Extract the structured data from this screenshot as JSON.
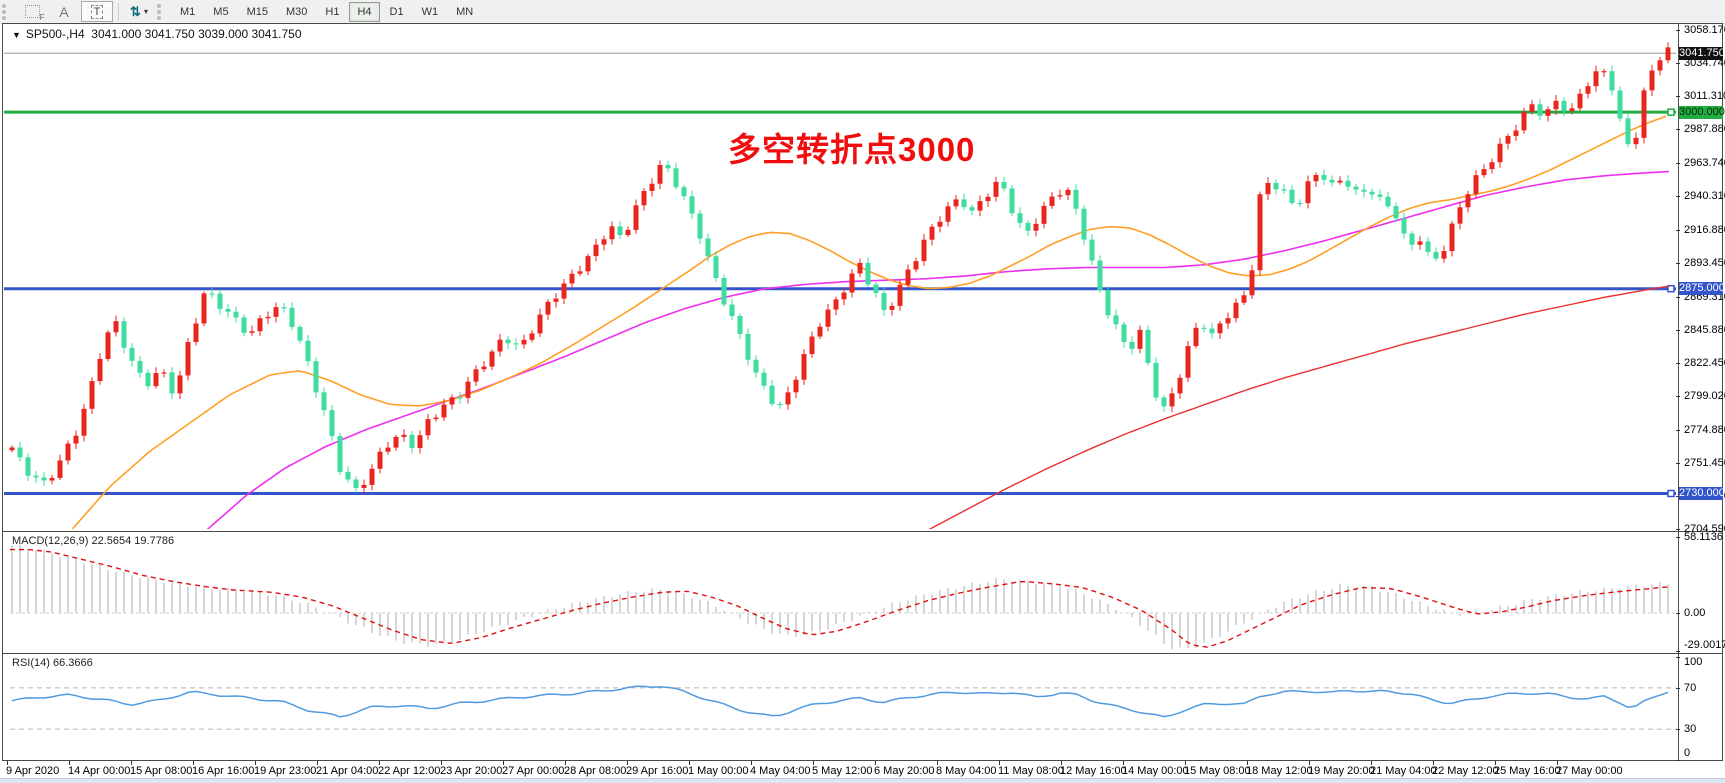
{
  "toolbar": {
    "icon_f": "F",
    "icon_a": "A",
    "icon_t": "T",
    "arrows_glyph": "⇅",
    "caret": "▾",
    "timeframes": [
      "M1",
      "M5",
      "M15",
      "M30",
      "H1",
      "H4",
      "D1",
      "W1",
      "MN"
    ],
    "active_timeframe": "H4"
  },
  "header": {
    "collapse_triangle": "▼",
    "symbol_title": "SP500-,H4",
    "ohlc_text": "3041.000 3041.750 3039.000 3041.750"
  },
  "annotation": {
    "text": "多空转折点3000",
    "color": "#f20d0d"
  },
  "colors": {
    "candle_up": "#e8261f",
    "candle_down": "#3cdd9e",
    "ma_orange": "#ffa024",
    "ma_magenta": "#ee2fee",
    "ma_red": "#e83030",
    "hline_green": "#22ac44",
    "hline_blue": "#3355cc",
    "current_line": "#9d9d9d",
    "macd_bar": "#c6c6c6",
    "macd_signal": "#e01010",
    "rsi_line": "#4f9be0",
    "level_dash": "#b5b5b5"
  },
  "y_axis": {
    "labels": [
      "3058.170",
      "3034.740",
      "3011.310",
      "2987.880",
      "2963.740",
      "2940.310",
      "2916.880",
      "2893.450",
      "2869.310",
      "2845.880",
      "2822.450",
      "2799.020",
      "2774.880",
      "2751.450",
      "2728.020",
      "2704.590"
    ]
  },
  "price_badges": [
    {
      "label": "3041.750",
      "price": 3041.75,
      "bg": "#111111",
      "fg": "#ffffff",
      "handle": false
    },
    {
      "label": "3000.000",
      "price": 3000.0,
      "bg": "#22ac44",
      "fg": "#002a00",
      "handle": true
    },
    {
      "label": "2875.000",
      "price": 2875.0,
      "bg": "#3355cc",
      "fg": "#ffffff",
      "handle": true
    },
    {
      "label": "2730.000",
      "price": 2730.0,
      "bg": "#3355cc",
      "fg": "#ffffff",
      "handle": true
    }
  ],
  "x_axis": {
    "labels": [
      "9 Apr 2020",
      "14 Apr 00:00",
      "15 Apr 08:00",
      "16 Apr 16:00",
      "19 Apr 23:00",
      "21 Apr 04:00",
      "22 Apr 12:00",
      "23 Apr 20:00",
      "27 Apr 00:00",
      "28 Apr 08:00",
      "29 Apr 16:00",
      "1 May 00:00",
      "4 May 04:00",
      "5 May 12:00",
      "6 May 20:00",
      "8 May 04:00",
      "11 May 08:00",
      "12 May 16:00",
      "14 May 00:00",
      "15 May 08:00",
      "18 May 12:00",
      "19 May 20:00",
      "21 May 04:00",
      "22 May 12:00",
      "25 May 16:00",
      "27 May 00:00"
    ]
  },
  "macd": {
    "label": "MACD(12,26,9)",
    "values": "22.5654 19.7786",
    "scale": [
      "58.1136",
      "0.00",
      "-29.0017"
    ]
  },
  "rsi": {
    "label": "RSI(14)",
    "value": "66.3666",
    "scale": [
      "100",
      "70",
      "30",
      "0"
    ],
    "levels": [
      70,
      30
    ]
  },
  "chart_data": {
    "type": "candlestick",
    "symbol": "SP500-",
    "timeframe": "H4",
    "ohlc_current": {
      "open": 3041.0,
      "high": 3041.75,
      "low": 3039.0,
      "close": 3041.75
    },
    "price_lines": [
      3000.0,
      2875.0,
      2730.0
    ],
    "current_price": 3041.75,
    "y_range": [
      2704.59,
      3058.17
    ],
    "close_anchors": [
      [
        8,
        2768
      ],
      [
        25,
        2745
      ],
      [
        45,
        2736
      ],
      [
        60,
        2755
      ],
      [
        75,
        2772
      ],
      [
        90,
        2800
      ],
      [
        105,
        2840
      ],
      [
        115,
        2852
      ],
      [
        130,
        2828
      ],
      [
        145,
        2806
      ],
      [
        160,
        2816
      ],
      [
        175,
        2800
      ],
      [
        190,
        2842
      ],
      [
        205,
        2874
      ],
      [
        220,
        2862
      ],
      [
        235,
        2852
      ],
      [
        250,
        2844
      ],
      [
        265,
        2858
      ],
      [
        280,
        2862
      ],
      [
        295,
        2846
      ],
      [
        310,
        2818
      ],
      [
        325,
        2788
      ],
      [
        340,
        2748
      ],
      [
        355,
        2729
      ],
      [
        370,
        2744
      ],
      [
        385,
        2766
      ],
      [
        400,
        2772
      ],
      [
        415,
        2762
      ],
      [
        430,
        2782
      ],
      [
        445,
        2794
      ],
      [
        460,
        2802
      ],
      [
        475,
        2814
      ],
      [
        490,
        2826
      ],
      [
        505,
        2842
      ],
      [
        520,
        2834
      ],
      [
        535,
        2850
      ],
      [
        550,
        2864
      ],
      [
        565,
        2878
      ],
      [
        580,
        2892
      ],
      [
        595,
        2904
      ],
      [
        610,
        2918
      ],
      [
        622,
        2908
      ],
      [
        635,
        2932
      ],
      [
        650,
        2952
      ],
      [
        662,
        2964
      ],
      [
        672,
        2954
      ],
      [
        685,
        2936
      ],
      [
        700,
        2914
      ],
      [
        712,
        2890
      ],
      [
        725,
        2866
      ],
      [
        740,
        2840
      ],
      [
        755,
        2814
      ],
      [
        770,
        2799
      ],
      [
        782,
        2792
      ],
      [
        795,
        2812
      ],
      [
        808,
        2832
      ],
      [
        820,
        2850
      ],
      [
        835,
        2866
      ],
      [
        848,
        2882
      ],
      [
        860,
        2892
      ],
      [
        872,
        2874
      ],
      [
        885,
        2856
      ],
      [
        898,
        2874
      ],
      [
        910,
        2892
      ],
      [
        922,
        2906
      ],
      [
        935,
        2920
      ],
      [
        948,
        2930
      ],
      [
        960,
        2940
      ],
      [
        972,
        2930
      ],
      [
        985,
        2942
      ],
      [
        1000,
        2950
      ],
      [
        1012,
        2930
      ],
      [
        1025,
        2912
      ],
      [
        1038,
        2928
      ],
      [
        1052,
        2940
      ],
      [
        1065,
        2946
      ],
      [
        1078,
        2926
      ],
      [
        1090,
        2898
      ],
      [
        1102,
        2870
      ],
      [
        1115,
        2850
      ],
      [
        1128,
        2830
      ],
      [
        1140,
        2842
      ],
      [
        1152,
        2810
      ],
      [
        1162,
        2788
      ],
      [
        1175,
        2806
      ],
      [
        1188,
        2832
      ],
      [
        1200,
        2852
      ],
      [
        1212,
        2840
      ],
      [
        1225,
        2856
      ],
      [
        1238,
        2866
      ],
      [
        1250,
        2876
      ],
      [
        1258,
        2936
      ],
      [
        1270,
        2950
      ],
      [
        1282,
        2944
      ],
      [
        1295,
        2934
      ],
      [
        1308,
        2950
      ],
      [
        1320,
        2958
      ],
      [
        1332,
        2946
      ],
      [
        1345,
        2952
      ],
      [
        1358,
        2942
      ],
      [
        1370,
        2948
      ],
      [
        1382,
        2936
      ],
      [
        1395,
        2928
      ],
      [
        1408,
        2902
      ],
      [
        1420,
        2912
      ],
      [
        1432,
        2894
      ],
      [
        1445,
        2906
      ],
      [
        1458,
        2928
      ],
      [
        1470,
        2946
      ],
      [
        1482,
        2958
      ],
      [
        1495,
        2972
      ],
      [
        1508,
        2984
      ],
      [
        1520,
        2992
      ],
      [
        1532,
        3004
      ],
      [
        1545,
        2996
      ],
      [
        1558,
        3012
      ],
      [
        1570,
        2998
      ],
      [
        1582,
        3016
      ],
      [
        1595,
        3024
      ],
      [
        1608,
        3030
      ],
      [
        1620,
        2994
      ],
      [
        1632,
        2972
      ],
      [
        1645,
        3016
      ],
      [
        1655,
        3034
      ],
      [
        1666,
        3041.75
      ]
    ],
    "ma_orange_anchors": [
      [
        70,
        2703
      ],
      [
        110,
        2735
      ],
      [
        150,
        2760
      ],
      [
        190,
        2780
      ],
      [
        230,
        2800
      ],
      [
        270,
        2814
      ],
      [
        300,
        2817
      ],
      [
        330,
        2810
      ],
      [
        360,
        2800
      ],
      [
        390,
        2793
      ],
      [
        420,
        2792
      ],
      [
        450,
        2796
      ],
      [
        480,
        2803
      ],
      [
        510,
        2812
      ],
      [
        540,
        2822
      ],
      [
        570,
        2834
      ],
      [
        600,
        2847
      ],
      [
        630,
        2860
      ],
      [
        660,
        2874
      ],
      [
        690,
        2888
      ],
      [
        710,
        2898
      ],
      [
        730,
        2906
      ],
      [
        750,
        2912
      ],
      [
        770,
        2915
      ],
      [
        790,
        2914
      ],
      [
        810,
        2909
      ],
      [
        830,
        2902
      ],
      [
        850,
        2894
      ],
      [
        870,
        2887
      ],
      [
        890,
        2881
      ],
      [
        910,
        2877
      ],
      [
        930,
        2875
      ],
      [
        950,
        2876
      ],
      [
        970,
        2879
      ],
      [
        990,
        2884
      ],
      [
        1010,
        2891
      ],
      [
        1030,
        2898
      ],
      [
        1050,
        2906
      ],
      [
        1070,
        2912
      ],
      [
        1090,
        2917
      ],
      [
        1110,
        2919
      ],
      [
        1130,
        2918
      ],
      [
        1150,
        2913
      ],
      [
        1170,
        2906
      ],
      [
        1190,
        2898
      ],
      [
        1210,
        2891
      ],
      [
        1230,
        2886
      ],
      [
        1250,
        2884
      ],
      [
        1270,
        2885
      ],
      [
        1290,
        2889
      ],
      [
        1310,
        2895
      ],
      [
        1330,
        2903
      ],
      [
        1350,
        2911
      ],
      [
        1370,
        2919
      ],
      [
        1390,
        2926
      ],
      [
        1410,
        2932
      ],
      [
        1430,
        2936
      ],
      [
        1450,
        2938
      ],
      [
        1470,
        2941
      ],
      [
        1490,
        2944
      ],
      [
        1510,
        2948
      ],
      [
        1530,
        2953
      ],
      [
        1550,
        2959
      ],
      [
        1570,
        2966
      ],
      [
        1590,
        2973
      ],
      [
        1610,
        2980
      ],
      [
        1630,
        2987
      ],
      [
        1650,
        2993
      ],
      [
        1670,
        2998
      ]
    ],
    "ma_magenta_anchors": [
      [
        205,
        2703
      ],
      [
        245,
        2728
      ],
      [
        285,
        2748
      ],
      [
        325,
        2763
      ],
      [
        365,
        2775
      ],
      [
        405,
        2785
      ],
      [
        445,
        2795
      ],
      [
        485,
        2805
      ],
      [
        525,
        2816
      ],
      [
        565,
        2827
      ],
      [
        605,
        2839
      ],
      [
        645,
        2851
      ],
      [
        685,
        2861
      ],
      [
        725,
        2869
      ],
      [
        765,
        2875
      ],
      [
        805,
        2878
      ],
      [
        845,
        2880
      ],
      [
        885,
        2881
      ],
      [
        925,
        2882
      ],
      [
        965,
        2884
      ],
      [
        1005,
        2887
      ],
      [
        1045,
        2889
      ],
      [
        1085,
        2890
      ],
      [
        1125,
        2890
      ],
      [
        1165,
        2890
      ],
      [
        1205,
        2892
      ],
      [
        1245,
        2896
      ],
      [
        1285,
        2902
      ],
      [
        1325,
        2909
      ],
      [
        1365,
        2917
      ],
      [
        1405,
        2925
      ],
      [
        1445,
        2933
      ],
      [
        1485,
        2941
      ],
      [
        1525,
        2947
      ],
      [
        1565,
        2952
      ],
      [
        1605,
        2955
      ],
      [
        1645,
        2957
      ],
      [
        1670,
        2958
      ]
    ],
    "ma_red_anchors": [
      [
        925,
        2703
      ],
      [
        965,
        2718
      ],
      [
        1005,
        2733
      ],
      [
        1045,
        2747
      ],
      [
        1085,
        2760
      ],
      [
        1125,
        2772
      ],
      [
        1165,
        2783
      ],
      [
        1205,
        2793
      ],
      [
        1245,
        2803
      ],
      [
        1285,
        2812
      ],
      [
        1325,
        2820
      ],
      [
        1365,
        2828
      ],
      [
        1405,
        2836
      ],
      [
        1445,
        2843
      ],
      [
        1485,
        2850
      ],
      [
        1525,
        2857
      ],
      [
        1565,
        2863
      ],
      [
        1605,
        2869
      ],
      [
        1645,
        2874
      ],
      [
        1670,
        2877
      ]
    ],
    "macd_anchors": [
      [
        8,
        52
      ],
      [
        30,
        50
      ],
      [
        60,
        44
      ],
      [
        90,
        38
      ],
      [
        120,
        31
      ],
      [
        150,
        26
      ],
      [
        180,
        22
      ],
      [
        210,
        19
      ],
      [
        250,
        17
      ],
      [
        280,
        13
      ],
      [
        310,
        6
      ],
      [
        340,
        -4
      ],
      [
        370,
        -14
      ],
      [
        400,
        -22
      ],
      [
        430,
        -25
      ],
      [
        460,
        -20
      ],
      [
        490,
        -12
      ],
      [
        520,
        -5
      ],
      [
        550,
        2
      ],
      [
        580,
        8
      ],
      [
        610,
        13
      ],
      [
        640,
        17
      ],
      [
        665,
        18
      ],
      [
        690,
        13
      ],
      [
        715,
        6
      ],
      [
        740,
        -4
      ],
      [
        765,
        -13
      ],
      [
        790,
        -18
      ],
      [
        815,
        -15
      ],
      [
        845,
        -7
      ],
      [
        875,
        2
      ],
      [
        905,
        10
      ],
      [
        935,
        16
      ],
      [
        965,
        21
      ],
      [
        1000,
        26
      ],
      [
        1030,
        24
      ],
      [
        1060,
        21
      ],
      [
        1090,
        13
      ],
      [
        1120,
        2
      ],
      [
        1150,
        -14
      ],
      [
        1168,
        -26
      ],
      [
        1185,
        -28
      ],
      [
        1205,
        -23
      ],
      [
        1225,
        -15
      ],
      [
        1250,
        -5
      ],
      [
        1280,
        7
      ],
      [
        1310,
        15
      ],
      [
        1340,
        21
      ],
      [
        1370,
        20
      ],
      [
        1400,
        13
      ],
      [
        1430,
        5
      ],
      [
        1455,
        -1
      ],
      [
        1480,
        1
      ],
      [
        1505,
        5
      ],
      [
        1530,
        10
      ],
      [
        1560,
        14
      ],
      [
        1590,
        17
      ],
      [
        1615,
        19
      ],
      [
        1640,
        21
      ],
      [
        1666,
        22.6
      ]
    ],
    "rsi_anchors": [
      [
        8,
        57
      ],
      [
        40,
        61
      ],
      [
        70,
        63
      ],
      [
        100,
        59
      ],
      [
        130,
        54
      ],
      [
        160,
        58
      ],
      [
        190,
        66
      ],
      [
        220,
        63
      ],
      [
        250,
        60
      ],
      [
        280,
        57
      ],
      [
        310,
        48
      ],
      [
        340,
        42
      ],
      [
        370,
        51
      ],
      [
        400,
        53
      ],
      [
        430,
        50
      ],
      [
        460,
        55
      ],
      [
        490,
        58
      ],
      [
        520,
        61
      ],
      [
        550,
        63
      ],
      [
        580,
        65
      ],
      [
        610,
        68
      ],
      [
        640,
        71
      ],
      [
        662,
        72
      ],
      [
        685,
        66
      ],
      [
        710,
        58
      ],
      [
        735,
        50
      ],
      [
        760,
        44
      ],
      [
        775,
        42
      ],
      [
        795,
        49
      ],
      [
        815,
        54
      ],
      [
        835,
        57
      ],
      [
        860,
        60
      ],
      [
        885,
        56
      ],
      [
        910,
        61
      ],
      [
        935,
        64
      ],
      [
        960,
        66
      ],
      [
        985,
        64
      ],
      [
        1010,
        66
      ],
      [
        1035,
        61
      ],
      [
        1060,
        65
      ],
      [
        1078,
        63
      ],
      [
        1095,
        57
      ],
      [
        1115,
        52
      ],
      [
        1135,
        48
      ],
      [
        1152,
        44
      ],
      [
        1165,
        41
      ],
      [
        1185,
        49
      ],
      [
        1205,
        54
      ],
      [
        1225,
        55
      ],
      [
        1245,
        54
      ],
      [
        1262,
        63
      ],
      [
        1285,
        66
      ],
      [
        1310,
        67
      ],
      [
        1330,
        65
      ],
      [
        1350,
        68
      ],
      [
        1370,
        66
      ],
      [
        1390,
        67
      ],
      [
        1410,
        64
      ],
      [
        1430,
        59
      ],
      [
        1450,
        55
      ],
      [
        1470,
        58
      ],
      [
        1490,
        62
      ],
      [
        1510,
        64
      ],
      [
        1530,
        65
      ],
      [
        1550,
        64
      ],
      [
        1570,
        61
      ],
      [
        1590,
        59
      ],
      [
        1605,
        62
      ],
      [
        1620,
        56
      ],
      [
        1632,
        49
      ],
      [
        1648,
        59
      ],
      [
        1666,
        66.4
      ]
    ]
  }
}
